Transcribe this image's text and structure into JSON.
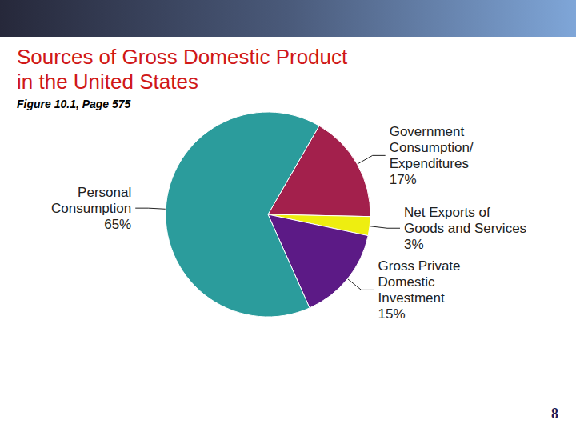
{
  "chart_data": {
    "type": "pie",
    "title": "Sources of Gross Domestic Product in the United States",
    "subtitle": "Figure 10.1, Page 575",
    "categories": [
      "Government Consumption/Expenditures",
      "Net Exports of Goods and Services",
      "Gross Private Domestic Investment",
      "Personal Consumption"
    ],
    "values": [
      17,
      3,
      15,
      65
    ],
    "value_labels": [
      "17%",
      "3%",
      "15%",
      "65%"
    ],
    "colors": [
      "#a3204c",
      "#eeee10",
      "#5c1a86",
      "#2b9c9c"
    ],
    "data_labels": true,
    "annotations": [
      "8"
    ]
  }
}
